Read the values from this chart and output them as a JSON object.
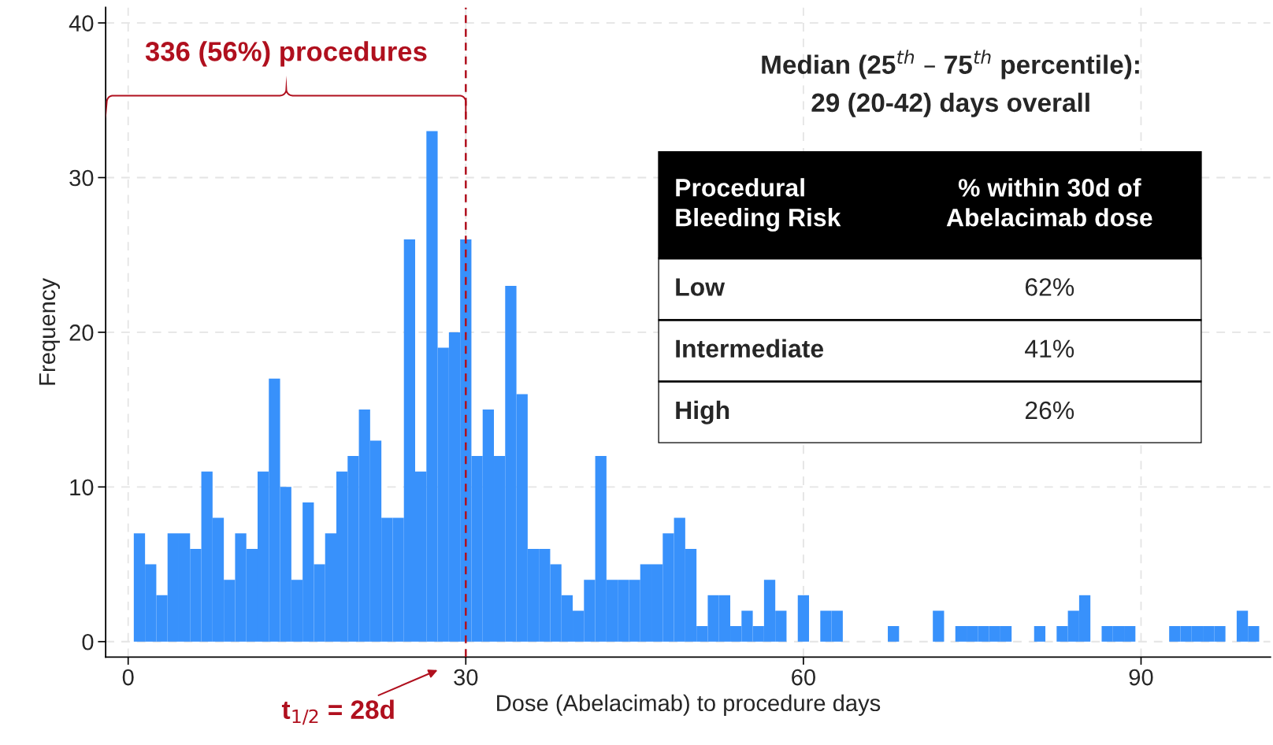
{
  "chart_data": [
    {
      "type": "histogram",
      "xlabel": "Dose (Abelacimab) to procedure days",
      "ylabel": "Frequency",
      "bins": [
        0.5,
        1.5,
        2.5,
        3.5,
        4.5,
        5.5,
        6.5,
        7.5,
        8.5,
        9.5,
        10.5,
        11.5,
        12.5,
        13.5,
        14.5,
        15.5,
        16.5,
        17.5,
        18.5,
        19.5,
        20.5,
        21.5,
        22.5,
        23.5,
        24.5,
        25.5,
        26.5,
        27.5,
        28.5,
        29.5,
        30.5,
        31.5,
        32.5,
        33.5,
        34.5,
        35.5,
        36.5,
        37.5,
        38.5,
        39.5,
        40.5,
        41.5,
        42.5,
        43.5,
        44.5,
        45.5,
        46.5,
        47.5,
        48.5,
        49.5,
        50.5,
        51.5,
        52.5,
        53.5,
        54.5,
        55.5,
        56.5,
        57.5,
        58.5,
        59.5,
        60.5,
        61.5,
        62.5,
        63.5,
        64.5,
        65.5,
        66.5,
        67.5,
        68.5,
        69.5,
        70.5,
        71.5,
        72.5,
        73.5,
        74.5,
        75.5,
        76.5,
        77.5,
        78.5,
        79.5,
        80.5,
        81.5,
        82.5,
        83.5,
        84.5,
        85.5,
        86.5,
        87.5,
        88.5,
        89.5,
        90.5,
        91.5,
        92.5,
        93.5,
        94.5,
        95.5,
        96.5,
        97.5,
        98.5,
        99.5,
        100.5
      ],
      "values": [
        7,
        5,
        3,
        7,
        7,
        6,
        11,
        8,
        4,
        7,
        6,
        11,
        17,
        10,
        4,
        9,
        5,
        7,
        11,
        12,
        15,
        13,
        8,
        8,
        26,
        11,
        33,
        19,
        20,
        26,
        12,
        15,
        12,
        23,
        16,
        6,
        6,
        5,
        3,
        2,
        4,
        12,
        4,
        4,
        4,
        5,
        5,
        7,
        8,
        6,
        1,
        3,
        3,
        1,
        2,
        1,
        4,
        2,
        0,
        3,
        0,
        2,
        2,
        0,
        0,
        0,
        0,
        1,
        0,
        0,
        0,
        2,
        0,
        1,
        1,
        1,
        1,
        1,
        0,
        0,
        1,
        0,
        1,
        2,
        3,
        0,
        1,
        1,
        1,
        0,
        0,
        0,
        1,
        1,
        1,
        1,
        1,
        0,
        2,
        1
      ],
      "color": "#3891fb",
      "xlim": [
        -2,
        101.5
      ],
      "ylim": [
        -1,
        41
      ],
      "xticks": [
        0,
        30,
        60,
        90
      ],
      "yticks": [
        0,
        10,
        20,
        30,
        40
      ],
      "grid": true,
      "ref_lines": [
        {
          "axis": "x",
          "value": 30,
          "color": "#b0101e",
          "line_style": "dashed"
        }
      ],
      "annotations": [
        "336 (56%) procedures",
        "Median (25$^{th}$ – 75$^{th}$ percentile):\n29 (20-42) days overall",
        "t$_{1/2}$ = 28d"
      ]
    },
    {
      "type": "other",
      "categories": [
        "Low",
        "Intermediate",
        "High"
      ],
      "values": [
        62,
        41,
        26
      ],
      "value_labels": [
        "62%",
        "41%",
        "26%"
      ],
      "annotations": [
        "Procedural\nBleeding Risk",
        "% within 30d of\nAbelacimab dose"
      ]
    }
  ]
}
